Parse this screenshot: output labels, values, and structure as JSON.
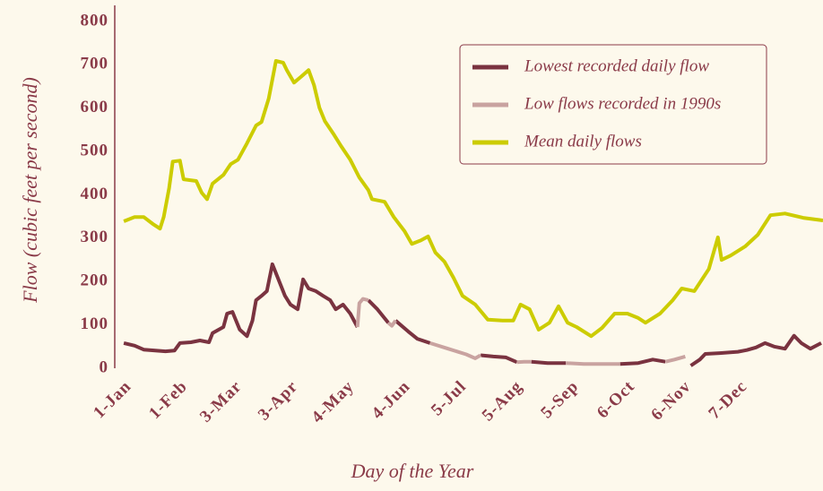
{
  "chart_data": {
    "type": "line",
    "xlabel": "Day of the Year",
    "ylabel": "Flow (cubic feet per second)",
    "xlim": [
      -4,
      387
    ],
    "xticks": [
      {
        "value": 1,
        "label": "1-Jan"
      },
      {
        "value": 32,
        "label": "1-Feb"
      },
      {
        "value": 62,
        "label": "3-Mar"
      },
      {
        "value": 93,
        "label": "3-Apr"
      },
      {
        "value": 124,
        "label": "4-May"
      },
      {
        "value": 155,
        "label": "4-Jun"
      },
      {
        "value": 186,
        "label": "5-Jul"
      },
      {
        "value": 217,
        "label": "5-Aug"
      },
      {
        "value": 248,
        "label": "5-Sep"
      },
      {
        "value": 279,
        "label": "6-Oct"
      },
      {
        "value": 310,
        "label": "6-Nov"
      },
      {
        "value": 341,
        "label": "7-Dec"
      }
    ],
    "ylim": [
      0,
      800
    ],
    "yticks": [
      0,
      100,
      200,
      300,
      400,
      500,
      600,
      700,
      800
    ],
    "legend": "upper right",
    "series": [
      {
        "name": "Lowest recorded daily flow",
        "color": "#7a3340",
        "x": [
          1,
          7,
          12,
          24,
          29,
          32,
          38,
          43,
          48,
          50,
          56,
          58,
          61,
          65,
          69,
          72,
          74,
          77,
          80,
          83,
          86,
          90,
          93,
          97,
          100,
          103,
          107,
          111,
          115,
          118,
          122,
          126,
          130,
          131,
          133,
          136,
          141,
          147,
          149,
          151,
          158,
          163,
          170,
          180,
          190,
          195,
          198,
          205,
          212,
          218,
          222,
          226,
          235,
          245,
          255,
          265,
          275,
          285,
          293,
          300,
          305,
          311,
          314,
          319,
          322,
          330,
          340,
          345,
          350,
          355,
          360,
          366,
          371,
          375,
          380,
          386
        ],
        "values": [
          58,
          52,
          43,
          39,
          41,
          58,
          60,
          64,
          60,
          81,
          95,
          126,
          130,
          89,
          74,
          110,
          157,
          167,
          178,
          240,
          209,
          167,
          147,
          136,
          205,
          184,
          178,
          167,
          157,
          136,
          147,
          126,
          95,
          null,
          null,
          157,
          136,
          105,
          null,
          110,
          85,
          68,
          58,
          null,
          null,
          null,
          30,
          27,
          25,
          14,
          null,
          15,
          12,
          12,
          null,
          null,
          10,
          12,
          20,
          15,
          null,
          null,
          6,
          20,
          33,
          35,
          38,
          42,
          48,
          58,
          50,
          45,
          75,
          58,
          45,
          58
        ]
      },
      {
        "name": "Low flows recorded in 1990s",
        "color": "#c9a3a0",
        "x": [
          1,
          7,
          12,
          24,
          29,
          32,
          38,
          43,
          48,
          50,
          56,
          58,
          61,
          65,
          69,
          72,
          74,
          77,
          80,
          83,
          86,
          90,
          93,
          97,
          100,
          103,
          107,
          111,
          115,
          118,
          122,
          126,
          130,
          131,
          133,
          136,
          141,
          147,
          149,
          151,
          158,
          163,
          170,
          180,
          190,
          195,
          198,
          205,
          212,
          218,
          222,
          226,
          235,
          245,
          255,
          265,
          275,
          285,
          293,
          300,
          305,
          311,
          314,
          319,
          322,
          330,
          340,
          345,
          350,
          355,
          360,
          366,
          371,
          375,
          380,
          386
        ],
        "values": [
          null,
          null,
          null,
          null,
          null,
          null,
          null,
          null,
          null,
          null,
          null,
          null,
          null,
          null,
          null,
          null,
          null,
          null,
          null,
          null,
          null,
          null,
          null,
          null,
          null,
          null,
          null,
          null,
          null,
          null,
          null,
          null,
          95,
          150,
          160,
          157,
          null,
          105,
          98,
          110,
          null,
          null,
          58,
          45,
          32,
          23,
          30,
          null,
          null,
          14,
          15,
          15,
          null,
          12,
          10,
          10,
          10,
          null,
          null,
          15,
          20,
          27,
          null,
          null,
          null,
          null,
          null,
          null,
          null,
          null,
          null,
          null,
          null,
          null,
          null,
          null
        ]
      },
      {
        "name": "Mean daily flows",
        "color": "#cccc00",
        "x": [
          1,
          7,
          12,
          17,
          21,
          23,
          26,
          28,
          32,
          34,
          41,
          44,
          47,
          50,
          56,
          60,
          64,
          69,
          74,
          77,
          81,
          85,
          89,
          91,
          95,
          99,
          103,
          106,
          109,
          112,
          117,
          121,
          126,
          131,
          136,
          138,
          145,
          150,
          156,
          160,
          165,
          169,
          173,
          178,
          183,
          188,
          195,
          202,
          210,
          216,
          220,
          225,
          230,
          236,
          241,
          246,
          251,
          259,
          265,
          272,
          279,
          285,
          289,
          297,
          304,
          309,
          316,
          324,
          329,
          331,
          336,
          344,
          351,
          358,
          366,
          376,
          387
        ],
        "values": [
          339,
          349,
          349,
          333,
          322,
          349,
          415,
          477,
          479,
          436,
          432,
          405,
          390,
          426,
          446,
          471,
          481,
          519,
          560,
          568,
          622,
          709,
          705,
          688,
          659,
          673,
          688,
          653,
          601,
          570,
          539,
          512,
          481,
          440,
          411,
          390,
          384,
          349,
          316,
          287,
          295,
          304,
          267,
          246,
          209,
          167,
          147,
          112,
          110,
          110,
          147,
          136,
          89,
          105,
          143,
          105,
          95,
          74,
          93,
          126,
          126,
          116,
          105,
          126,
          157,
          184,
          178,
          229,
          302,
          250,
          260,
          281,
          308,
          353,
          357,
          347,
          341
        ]
      }
    ]
  }
}
